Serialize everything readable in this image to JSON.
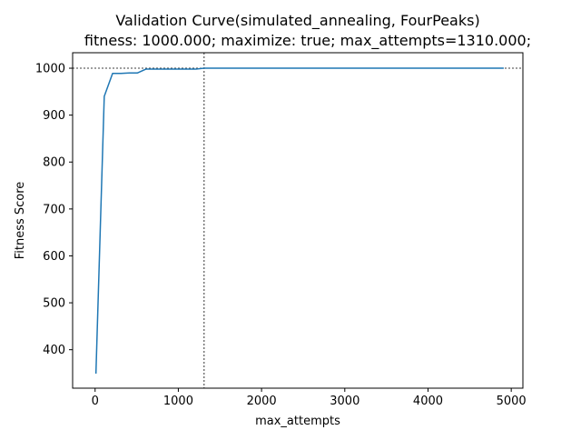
{
  "chart_data": {
    "type": "line",
    "title": "Validation Curve(simulated_annealing, FourPeaks)",
    "subtitle": "fitness: 1000.000; maximize: true; max_attempts=1310.000;",
    "xlabel": "max_attempts",
    "ylabel": "Fitness Score",
    "xlim": [
      -270,
      5140
    ],
    "ylim": [
      318,
      1033
    ],
    "xticks": [
      0,
      1000,
      2000,
      3000,
      4000,
      5000
    ],
    "yticks": [
      400,
      500,
      600,
      700,
      800,
      900,
      1000
    ],
    "grid": false,
    "legend": "none",
    "reference_lines": {
      "vertical_x": 1310,
      "horizontal_y": 1000
    },
    "series": [
      {
        "x": [
          10,
          110,
          210,
          310,
          410,
          510,
          610,
          710,
          810,
          910,
          1010,
          1110,
          1210,
          1310,
          1410,
          1510,
          1610,
          1710,
          1810,
          1910,
          2010,
          2110,
          2210,
          2310,
          2410,
          2510,
          2610,
          2710,
          2810,
          2910,
          3010,
          3110,
          3210,
          3310,
          3410,
          3510,
          3610,
          3710,
          3810,
          3910,
          4010,
          4110,
          4210,
          4310,
          4410,
          4510,
          4610,
          4710,
          4810,
          4910
        ],
        "values": [
          349,
          940,
          989,
          989,
          990,
          990,
          998,
          998,
          998,
          998,
          998,
          998,
          998,
          1000,
          1000,
          1000,
          1000,
          1000,
          1000,
          1000,
          1000,
          1000,
          1000,
          1000,
          1000,
          1000,
          1000,
          1000,
          1000,
          1000,
          1000,
          1000,
          1000,
          1000,
          1000,
          1000,
          1000,
          1000,
          1000,
          1000,
          1000,
          1000,
          1000,
          1000,
          1000,
          1000,
          1000,
          1000,
          1000,
          1000
        ]
      }
    ]
  },
  "colors": {
    "line": "#1f77b4",
    "axes": "#000000",
    "reference": "#000000"
  }
}
